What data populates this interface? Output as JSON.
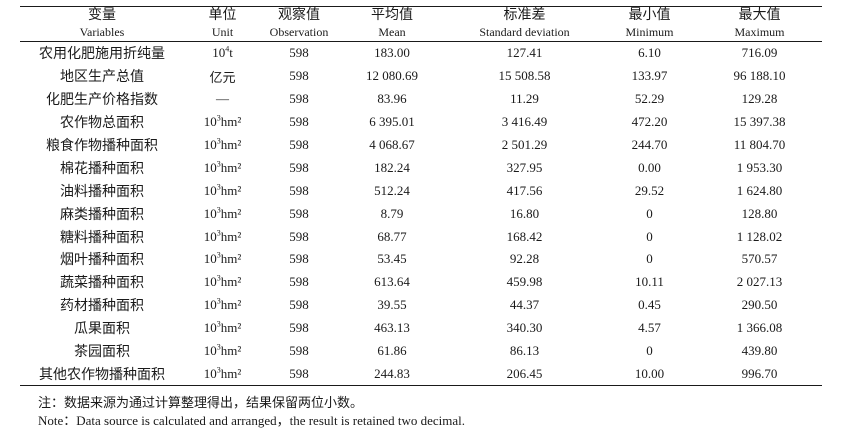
{
  "table": {
    "headers": [
      {
        "zh": "变量",
        "en": "Variables"
      },
      {
        "zh": "单位",
        "en": "Unit"
      },
      {
        "zh": "观察值",
        "en": "Observation"
      },
      {
        "zh": "平均值",
        "en": "Mean"
      },
      {
        "zh": "标准差",
        "en": "Standard deviation"
      },
      {
        "zh": "最小值",
        "en": "Minimum"
      },
      {
        "zh": "最大值",
        "en": "Maximum"
      }
    ],
    "rows": [
      {
        "name": "农用化肥施用折纯量",
        "unit_base": "10",
        "unit_sup": "4",
        "unit_tail": "t",
        "obs": "598",
        "mean": "183.00",
        "sd": "127.41",
        "min": "6.10",
        "max": "716.09"
      },
      {
        "name": "地区生产总值",
        "unit_base": "亿元",
        "unit_sup": "",
        "unit_tail": "",
        "obs": "598",
        "mean": "12 080.69",
        "sd": "15 508.58",
        "min": "133.97",
        "max": "96 188.10"
      },
      {
        "name": "化肥生产价格指数",
        "unit_base": "—",
        "unit_sup": "",
        "unit_tail": "",
        "obs": "598",
        "mean": "83.96",
        "sd": "11.29",
        "min": "52.29",
        "max": "129.28"
      },
      {
        "name": "农作物总面积",
        "unit_base": "10",
        "unit_sup": "3",
        "unit_tail": "hm²",
        "obs": "598",
        "mean": "6 395.01",
        "sd": "3 416.49",
        "min": "472.20",
        "max": "15 397.38"
      },
      {
        "name": "粮食作物播种面积",
        "unit_base": "10",
        "unit_sup": "3",
        "unit_tail": "hm²",
        "obs": "598",
        "mean": "4 068.67",
        "sd": "2 501.29",
        "min": "244.70",
        "max": "11 804.70"
      },
      {
        "name": "棉花播种面积",
        "unit_base": "10",
        "unit_sup": "3",
        "unit_tail": "hm²",
        "obs": "598",
        "mean": "182.24",
        "sd": "327.95",
        "min": "0.00",
        "max": "1 953.30"
      },
      {
        "name": "油料播种面积",
        "unit_base": "10",
        "unit_sup": "3",
        "unit_tail": "hm²",
        "obs": "598",
        "mean": "512.24",
        "sd": "417.56",
        "min": "29.52",
        "max": "1 624.80"
      },
      {
        "name": "麻类播种面积",
        "unit_base": "10",
        "unit_sup": "3",
        "unit_tail": "hm²",
        "obs": "598",
        "mean": "8.79",
        "sd": "16.80",
        "min": "0",
        "max": "128.80"
      },
      {
        "name": "糖料播种面积",
        "unit_base": "10",
        "unit_sup": "3",
        "unit_tail": "hm²",
        "obs": "598",
        "mean": "68.77",
        "sd": "168.42",
        "min": "0",
        "max": "1 128.02"
      },
      {
        "name": "烟叶播种面积",
        "unit_base": "10",
        "unit_sup": "3",
        "unit_tail": "hm²",
        "obs": "598",
        "mean": "53.45",
        "sd": "92.28",
        "min": "0",
        "max": "570.57"
      },
      {
        "name": "蔬菜播种面积",
        "unit_base": "10",
        "unit_sup": "3",
        "unit_tail": "hm²",
        "obs": "598",
        "mean": "613.64",
        "sd": "459.98",
        "min": "10.11",
        "max": "2 027.13"
      },
      {
        "name": "药材播种面积",
        "unit_base": "10",
        "unit_sup": "3",
        "unit_tail": "hm²",
        "obs": "598",
        "mean": "39.55",
        "sd": "44.37",
        "min": "0.45",
        "max": "290.50"
      },
      {
        "name": "瓜果面积",
        "unit_base": "10",
        "unit_sup": "3",
        "unit_tail": "hm²",
        "obs": "598",
        "mean": "463.13",
        "sd": "340.30",
        "min": "4.57",
        "max": "1 366.08"
      },
      {
        "name": "茶园面积",
        "unit_base": "10",
        "unit_sup": "3",
        "unit_tail": "hm²",
        "obs": "598",
        "mean": "61.86",
        "sd": "86.13",
        "min": "0",
        "max": "439.80"
      },
      {
        "name": "其他农作物播种面积",
        "unit_base": "10",
        "unit_sup": "3",
        "unit_tail": "hm²",
        "obs": "598",
        "mean": "244.83",
        "sd": "206.45",
        "min": "10.00",
        "max": "996.70"
      }
    ]
  },
  "notes": {
    "zh": "注：数据来源为通过计算整理得出，结果保留两位小数。",
    "en": "Note：Data source is calculated and arranged，the result is retained two decimal."
  }
}
